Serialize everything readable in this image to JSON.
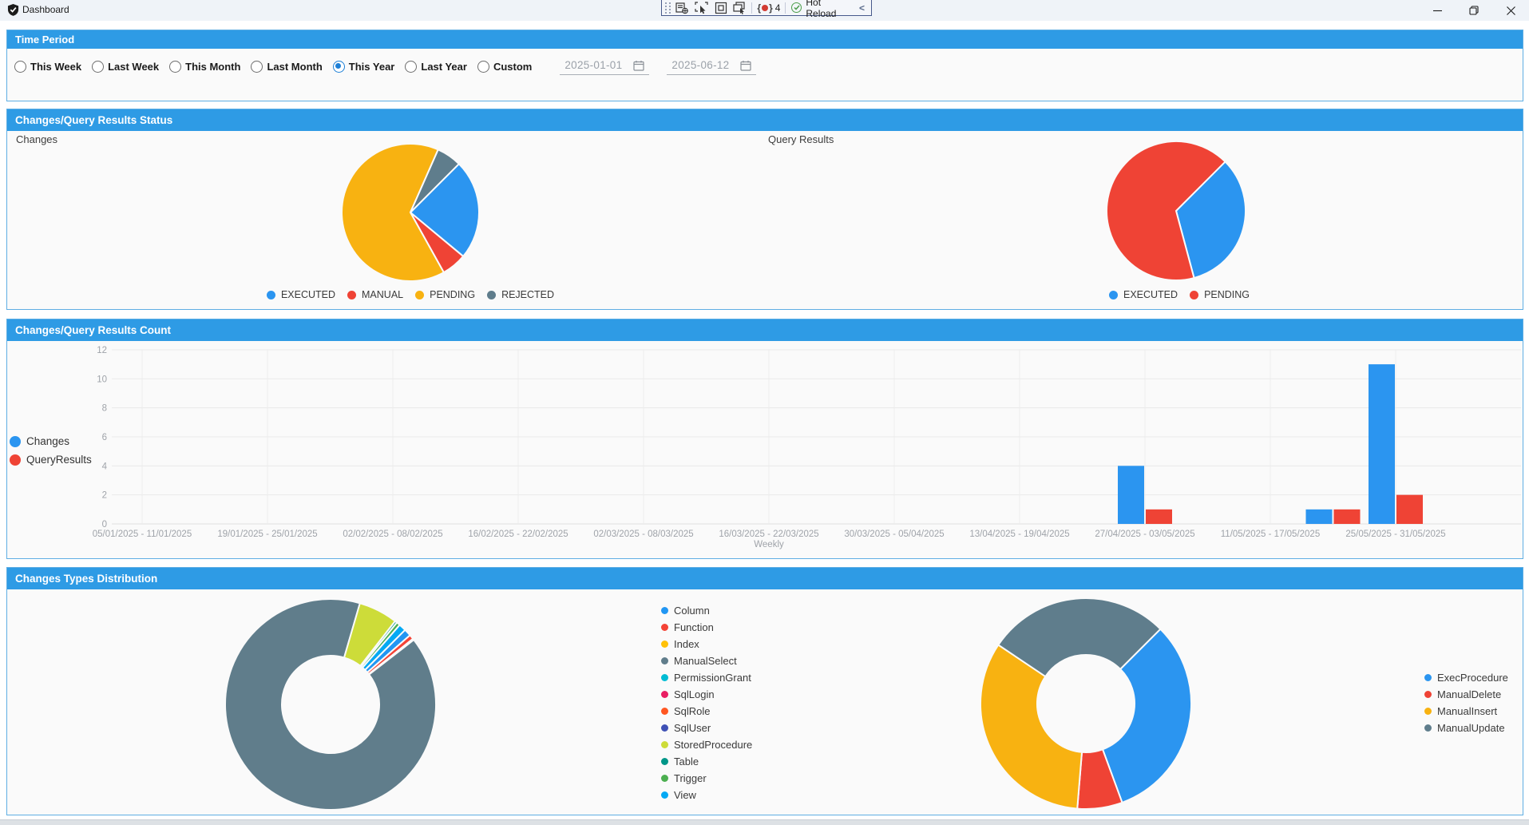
{
  "window": {
    "title": "Dashboard",
    "controls": [
      "minimize",
      "restore",
      "close"
    ]
  },
  "debug_toolbar": {
    "tools": [
      "live-visual-tree",
      "enable-selection",
      "display-adorners",
      "track-focused-element"
    ],
    "binding_errors_count": "4",
    "hot_reload_label": "Hot Reload",
    "collapse_glyph": "<"
  },
  "colors": {
    "header_blue": "#2E9BE5",
    "panel_border": "#5FAEE3",
    "series_blue": "#2B95F0",
    "series_red": "#EF4335",
    "series_yellow": "#F8B211",
    "series_slate": "#5F7D8C"
  },
  "sections": {
    "time_period": {
      "title": "Time Period",
      "options": [
        {
          "label": "This Week",
          "selected": false
        },
        {
          "label": "Last Week",
          "selected": false
        },
        {
          "label": "This Month",
          "selected": false
        },
        {
          "label": "Last Month",
          "selected": false
        },
        {
          "label": "This Year",
          "selected": true
        },
        {
          "label": "Last Year",
          "selected": false
        },
        {
          "label": "Custom",
          "selected": false
        }
      ],
      "date_from": "2025-01-01",
      "date_to": "2025-06-12"
    },
    "status": {
      "title": "Changes/Query Results Status",
      "left_chart_label": "Changes",
      "right_chart_label": "Query Results"
    },
    "count": {
      "title": "Changes/Query Results Count"
    },
    "types": {
      "title": "Changes Types Distribution"
    }
  },
  "chart_data": [
    {
      "id": "changes-status-pie",
      "type": "pie",
      "title": "Changes",
      "legend_position": "bottom",
      "start_angle_deg": 45,
      "slices": [
        {
          "label": "EXECUTED",
          "value": 4,
          "color": "#2B95F0"
        },
        {
          "label": "MANUAL",
          "value": 1,
          "color": "#EF4335"
        },
        {
          "label": "PENDING",
          "value": 11,
          "color": "#F8B211"
        },
        {
          "label": "REJECTED",
          "value": 1,
          "color": "#5F7D8C"
        }
      ]
    },
    {
      "id": "query-status-pie",
      "type": "pie",
      "title": "Query Results",
      "legend_position": "bottom",
      "start_angle_deg": 45,
      "slices": [
        {
          "label": "EXECUTED",
          "value": 1,
          "color": "#2B95F0"
        },
        {
          "label": "PENDING",
          "value": 2,
          "color": "#EF4335"
        }
      ]
    },
    {
      "id": "count-bar",
      "type": "bar",
      "title": "Changes/Query Results Count",
      "xlabel": "Weekly",
      "ylim": [
        0,
        12
      ],
      "yticks": [
        0,
        2,
        4,
        6,
        8,
        10,
        12
      ],
      "grid": true,
      "legend_position": "left",
      "tick_labels": [
        "05/01/2025 - 11/01/2025",
        "19/01/2025 - 25/01/2025",
        "02/02/2025 - 08/02/2025",
        "16/02/2025 - 22/02/2025",
        "02/03/2025 - 08/03/2025",
        "16/03/2025 - 22/03/2025",
        "30/03/2025 - 05/04/2025",
        "13/04/2025 - 19/04/2025",
        "27/04/2025 - 03/05/2025",
        "11/05/2025 - 17/05/2025",
        "25/05/2025 - 31/05/2025"
      ],
      "weeks_per_labeled_tick": 2,
      "series": [
        {
          "name": "Changes",
          "color": "#2B95F0",
          "points": [
            {
              "week_slot": 16,
              "week": "27/04/2025 - 03/05/2025",
              "value": 4
            },
            {
              "week_slot": 19,
              "week": "18/05/2025 - 24/05/2025",
              "value": 1
            },
            {
              "week_slot": 20,
              "week": "25/05/2025 - 31/05/2025",
              "value": 11
            }
          ]
        },
        {
          "name": "QueryResults",
          "color": "#EF4335",
          "points": [
            {
              "week_slot": 16,
              "week": "27/04/2025 - 03/05/2025",
              "value": 1
            },
            {
              "week_slot": 19,
              "week": "18/05/2025 - 24/05/2025",
              "value": 1
            },
            {
              "week_slot": 20,
              "week": "25/05/2025 - 31/05/2025",
              "value": 2
            }
          ]
        }
      ]
    },
    {
      "id": "changes-types-donut",
      "type": "donut",
      "title": "Changes Types Distribution (by type)",
      "legend_position": "right",
      "start_angle_deg": 45,
      "values_are_percent_estimates": true,
      "slices": [
        {
          "label": "Column",
          "value": 1.1,
          "color": "#2196F3"
        },
        {
          "label": "Function",
          "value": 0.7,
          "color": "#F44336"
        },
        {
          "label": "Index",
          "value": 0.2,
          "color": "#FFC107"
        },
        {
          "label": "ManualSelect",
          "value": 90.0,
          "color": "#607D8B"
        },
        {
          "label": "PermissionGrant",
          "value": 0,
          "color": "#00BCD4"
        },
        {
          "label": "SqlLogin",
          "value": 0,
          "color": "#E91E63"
        },
        {
          "label": "SqlRole",
          "value": 0,
          "color": "#FF5722"
        },
        {
          "label": "SqlUser",
          "value": 0,
          "color": "#3F51B5"
        },
        {
          "label": "StoredProcedure",
          "value": 6.0,
          "color": "#CDDC39"
        },
        {
          "label": "Table",
          "value": 0.35,
          "color": "#009688"
        },
        {
          "label": "Trigger",
          "value": 0.55,
          "color": "#4CAF50"
        },
        {
          "label": "View",
          "value": 1.1,
          "color": "#03A9F4"
        }
      ]
    },
    {
      "id": "manual-ops-donut",
      "type": "donut",
      "title": "Changes Types Distribution (by operation)",
      "legend_position": "right",
      "start_angle_deg": 45,
      "values_are_percent_estimates": true,
      "slices": [
        {
          "label": "ExecProcedure",
          "value": 31.9,
          "color": "#2B95F0"
        },
        {
          "label": "ManualDelete",
          "value": 6.9,
          "color": "#EF4335"
        },
        {
          "label": "ManualInsert",
          "value": 33.1,
          "color": "#F8B211"
        },
        {
          "label": "ManualUpdate",
          "value": 28.1,
          "color": "#5F7D8C"
        }
      ]
    }
  ]
}
